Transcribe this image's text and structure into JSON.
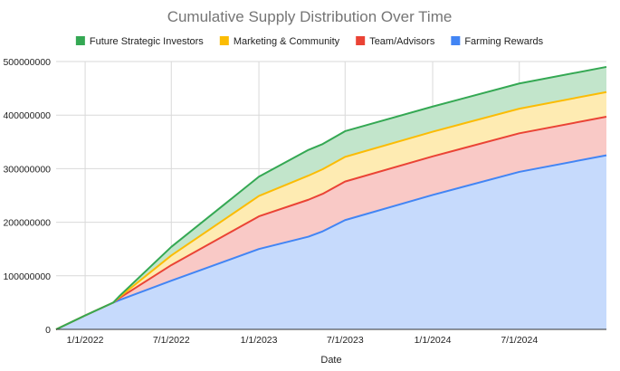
{
  "chart_data": {
    "type": "area",
    "stacked": true,
    "title": "Cumulative Supply Distribution Over Time",
    "xlabel": "Date",
    "ylabel": "",
    "ylim": [
      0,
      500000000
    ],
    "yticks": [
      0,
      100000000,
      200000000,
      300000000,
      400000000,
      500000000
    ],
    "ytick_labels": [
      "0",
      "100000000",
      "200000000",
      "300000000",
      "400000000",
      "500000000"
    ],
    "xlim": [
      "2021-11-01",
      "2024-12-31"
    ],
    "xticks": [
      "2022-01-01",
      "2022-07-01",
      "2023-01-01",
      "2023-07-01",
      "2024-01-01",
      "2024-07-01"
    ],
    "xtick_labels": [
      "1/1/2022",
      "7/1/2022",
      "1/1/2023",
      "7/1/2023",
      "1/1/2024",
      "7/1/2024"
    ],
    "grid": true,
    "legend_position": "top",
    "x": [
      "2021-11-01",
      "2022-01-01",
      "2022-03-01",
      "2022-03-15",
      "2022-07-01",
      "2023-01-01",
      "2023-04-15",
      "2023-05-15",
      "2023-07-01",
      "2024-01-01",
      "2024-07-01",
      "2024-12-31"
    ],
    "series": [
      {
        "name": "Farming Rewards",
        "color": "#4285f4",
        "fill": "#c6dafc",
        "values": [
          0,
          26000000,
          50000000,
          55000000,
          91000000,
          150000000,
          173000000,
          183000000,
          204000000,
          251000000,
          294000000,
          325000000
        ]
      },
      {
        "name": "Team/Advisors",
        "color": "#ea4335",
        "fill": "#f9c9c6",
        "values": [
          0,
          0,
          0,
          4000000,
          29000000,
          61000000,
          69000000,
          70000000,
          72000000,
          72000000,
          72000000,
          72000000
        ]
      },
      {
        "name": "Marketing & Community",
        "color": "#fbbc04",
        "fill": "#feebb2",
        "values": [
          0,
          0,
          0,
          2000000,
          18000000,
          38000000,
          45000000,
          46000000,
          46000000,
          46000000,
          46000000,
          46000000
        ]
      },
      {
        "name": "Future Strategic Investors",
        "color": "#34a853",
        "fill": "#c2e5cb",
        "values": [
          0,
          0,
          0,
          2000000,
          16000000,
          36000000,
          48000000,
          47000000,
          48000000,
          47000000,
          47000000,
          47000000
        ]
      }
    ]
  }
}
